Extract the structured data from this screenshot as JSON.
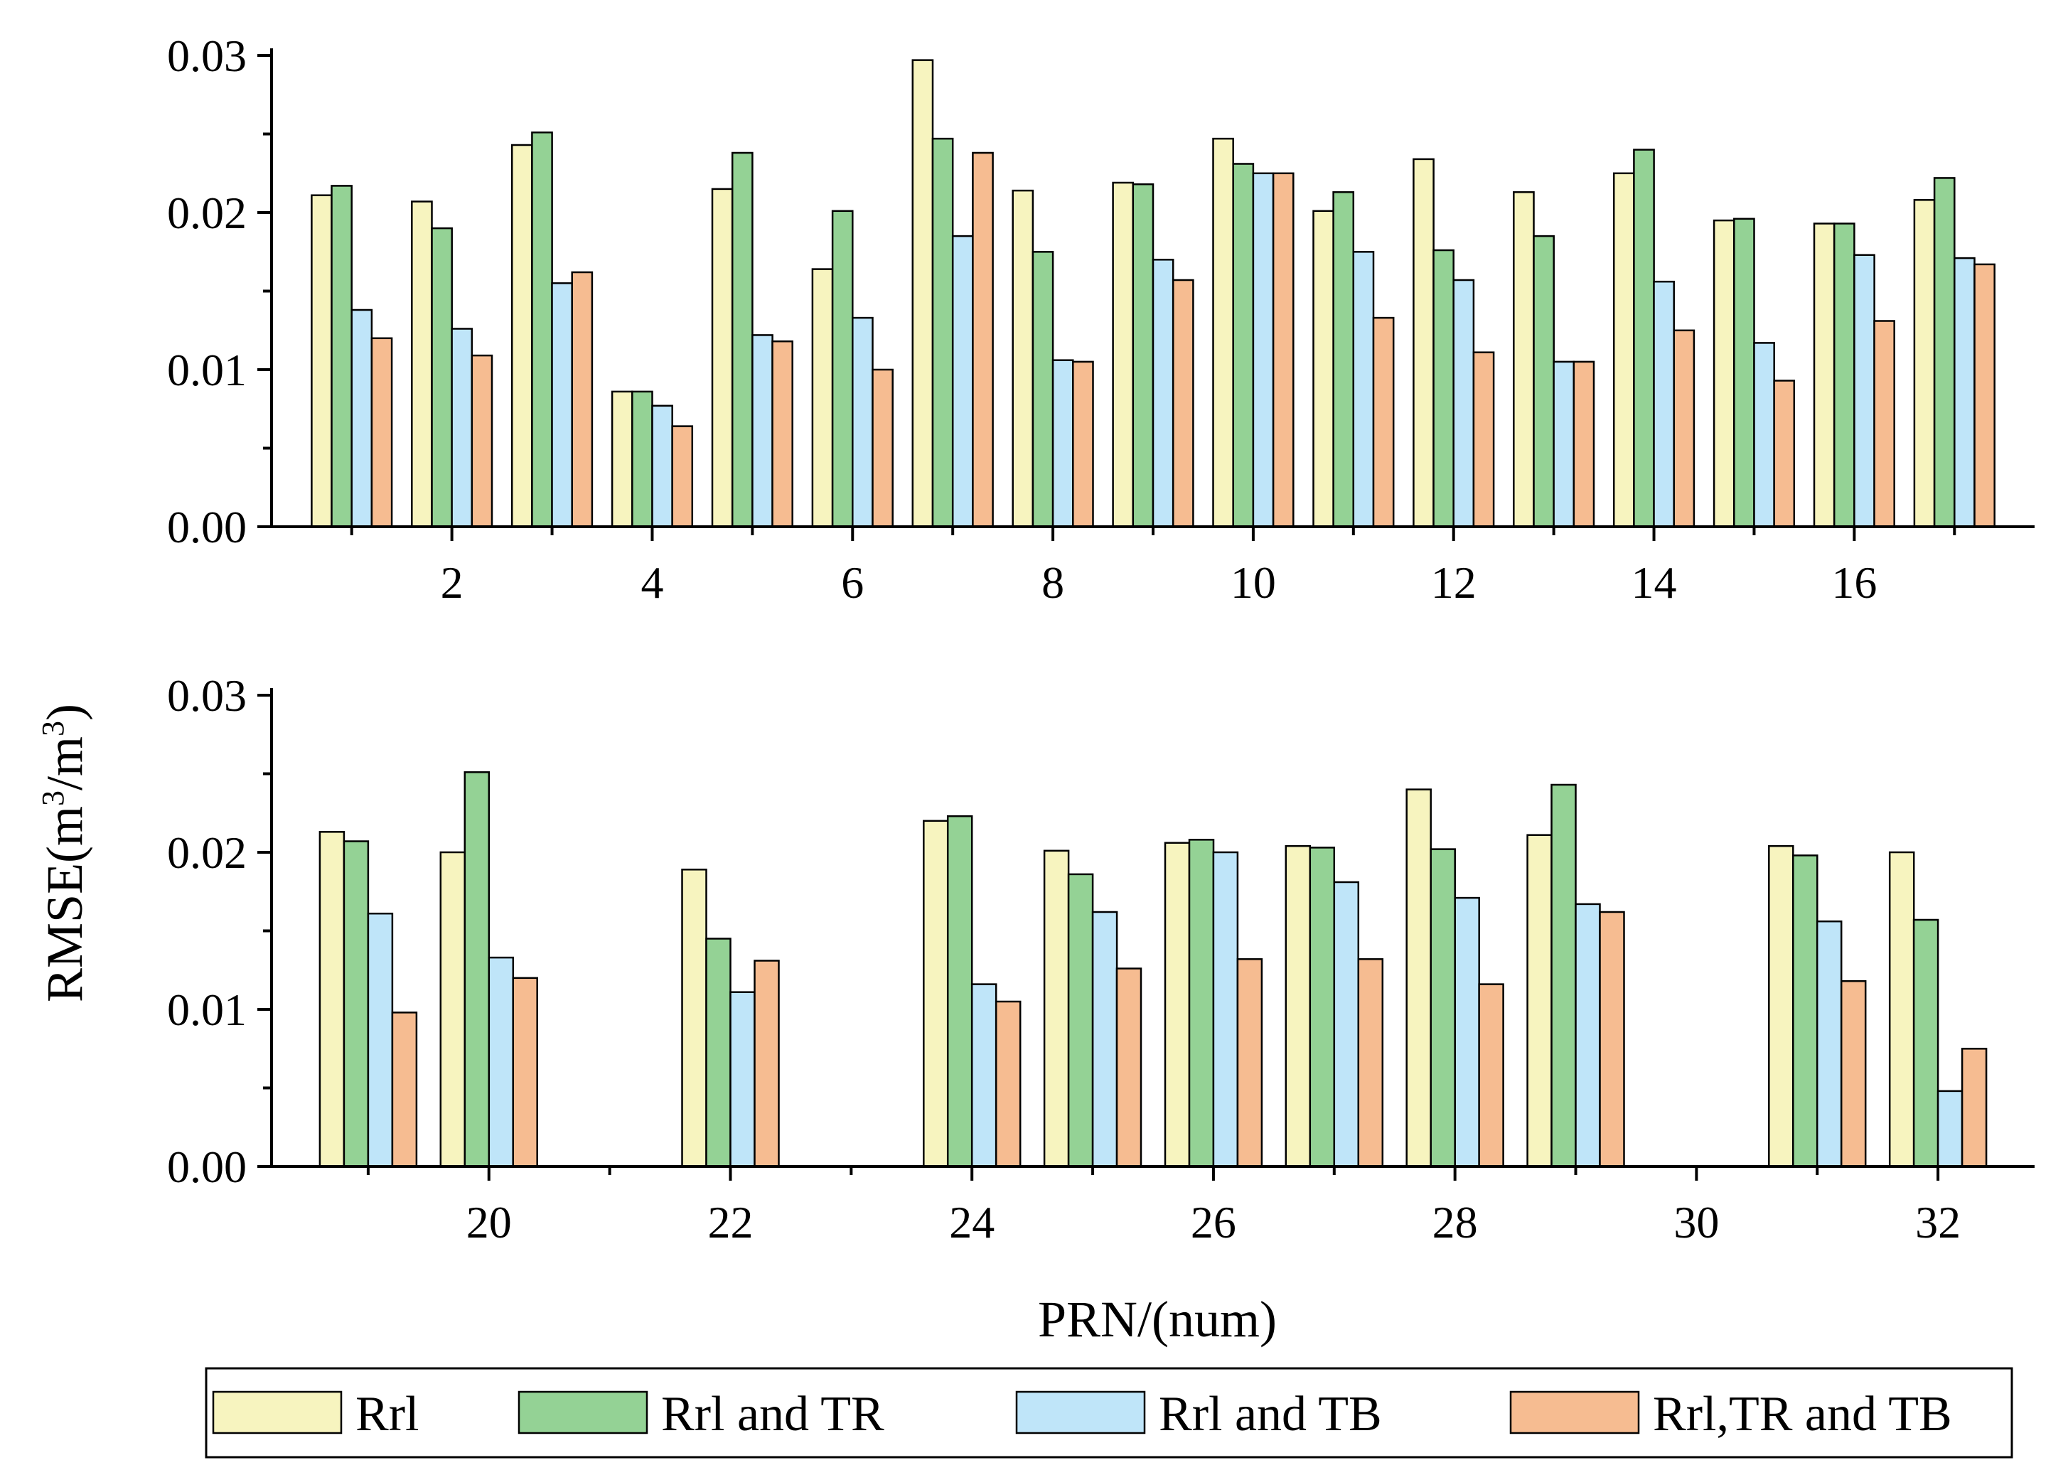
{
  "chart_data": [
    {
      "type": "bar",
      "panel": "top",
      "x": [
        1,
        2,
        3,
        4,
        5,
        6,
        7,
        8,
        9,
        10,
        11,
        12,
        13,
        14,
        15,
        16,
        17
      ],
      "xticks": [
        "2",
        "4",
        "6",
        "8",
        "10",
        "12",
        "14",
        "16"
      ],
      "xtick_values": [
        2,
        4,
        6,
        8,
        10,
        12,
        14,
        16
      ],
      "xlim": [
        0.2,
        17.8
      ],
      "ylim": [
        0,
        0.03
      ],
      "yticks": [
        "0.00",
        "0.01",
        "0.02",
        "0.03"
      ],
      "ytick_values": [
        0,
        0.01,
        0.02,
        0.03
      ],
      "series": [
        {
          "name": "Rrl",
          "color": "#f7f4bf",
          "values": [
            0.0211,
            0.0207,
            0.0243,
            0.0086,
            0.0215,
            0.0164,
            0.0297,
            0.0214,
            0.0219,
            0.0247,
            0.0201,
            0.0234,
            0.0213,
            0.0225,
            0.0195,
            0.0193,
            0.0208
          ]
        },
        {
          "name": "Rrl and TR",
          "color": "#94d295",
          "values": [
            0.0217,
            0.019,
            0.0251,
            0.0086,
            0.0238,
            0.0201,
            0.0247,
            0.0175,
            0.0218,
            0.0231,
            0.0213,
            0.0176,
            0.0185,
            0.024,
            0.0196,
            0.0193,
            0.0222
          ]
        },
        {
          "name": "Rrl and TB",
          "color": "#bfe5f9",
          "values": [
            0.0138,
            0.0126,
            0.0155,
            0.0077,
            0.0122,
            0.0133,
            0.0185,
            0.0106,
            0.017,
            0.0225,
            0.0175,
            0.0157,
            0.0105,
            0.0156,
            0.0117,
            0.0173,
            0.0171
          ]
        },
        {
          "name": "Rrl,TR and TB",
          "color": "#f6bc91",
          "values": [
            0.012,
            0.0109,
            0.0162,
            0.0064,
            0.0118,
            0.01,
            0.0238,
            0.0105,
            0.0157,
            0.0225,
            0.0133,
            0.0111,
            0.0105,
            0.0125,
            0.0093,
            0.0131,
            0.0167
          ]
        }
      ]
    },
    {
      "type": "bar",
      "panel": "bottom",
      "x": [
        19,
        20,
        22,
        24,
        25,
        26,
        27,
        28,
        29,
        31,
        32
      ],
      "xticks": [
        "20",
        "22",
        "24",
        "26",
        "28",
        "30",
        "32"
      ],
      "xtick_values": [
        20,
        22,
        24,
        26,
        28,
        30,
        32
      ],
      "xlim": [
        18.2,
        32.8
      ],
      "ylim": [
        0,
        0.03
      ],
      "yticks": [
        "0.00",
        "0.01",
        "0.02",
        "0.03"
      ],
      "ytick_values": [
        0,
        0.01,
        0.02,
        0.03
      ],
      "series": [
        {
          "name": "Rrl",
          "color": "#f7f4bf",
          "values": [
            0.0213,
            0.02,
            0.0189,
            0.022,
            0.0201,
            0.0206,
            0.0204,
            0.024,
            0.0211,
            0.0204,
            0.02
          ]
        },
        {
          "name": "Rrl and TR",
          "color": "#94d295",
          "values": [
            0.0207,
            0.0251,
            0.0145,
            0.0223,
            0.0186,
            0.0208,
            0.0203,
            0.0202,
            0.0243,
            0.0198,
            0.0157
          ]
        },
        {
          "name": "Rrl and TB",
          "color": "#bfe5f9",
          "values": [
            0.0161,
            0.0133,
            0.0111,
            0.0116,
            0.0162,
            0.02,
            0.0181,
            0.0171,
            0.0167,
            0.0156,
            0.0048
          ]
        },
        {
          "name": "Rrl,TR and TB",
          "color": "#f6bc91",
          "values": [
            0.0098,
            0.012,
            0.0131,
            0.0105,
            0.0126,
            0.0132,
            0.0132,
            0.0116,
            0.0162,
            0.0118,
            0.0075
          ]
        }
      ]
    }
  ],
  "ylabel_main": "RMSE(m",
  "ylabel_sup1": "3",
  "ylabel_mid": "/m",
  "ylabel_sup2": "3",
  "ylabel_end": ")",
  "xlabel": "PRN/(num)",
  "legend": [
    {
      "label": "Rrl",
      "color": "#f7f4bf"
    },
    {
      "label": "Rrl and TR",
      "color": "#94d295"
    },
    {
      "label": "Rrl and TB",
      "color": "#bfe5f9"
    },
    {
      "label": "Rrl,TR and TB",
      "color": "#f6bc91"
    }
  ]
}
